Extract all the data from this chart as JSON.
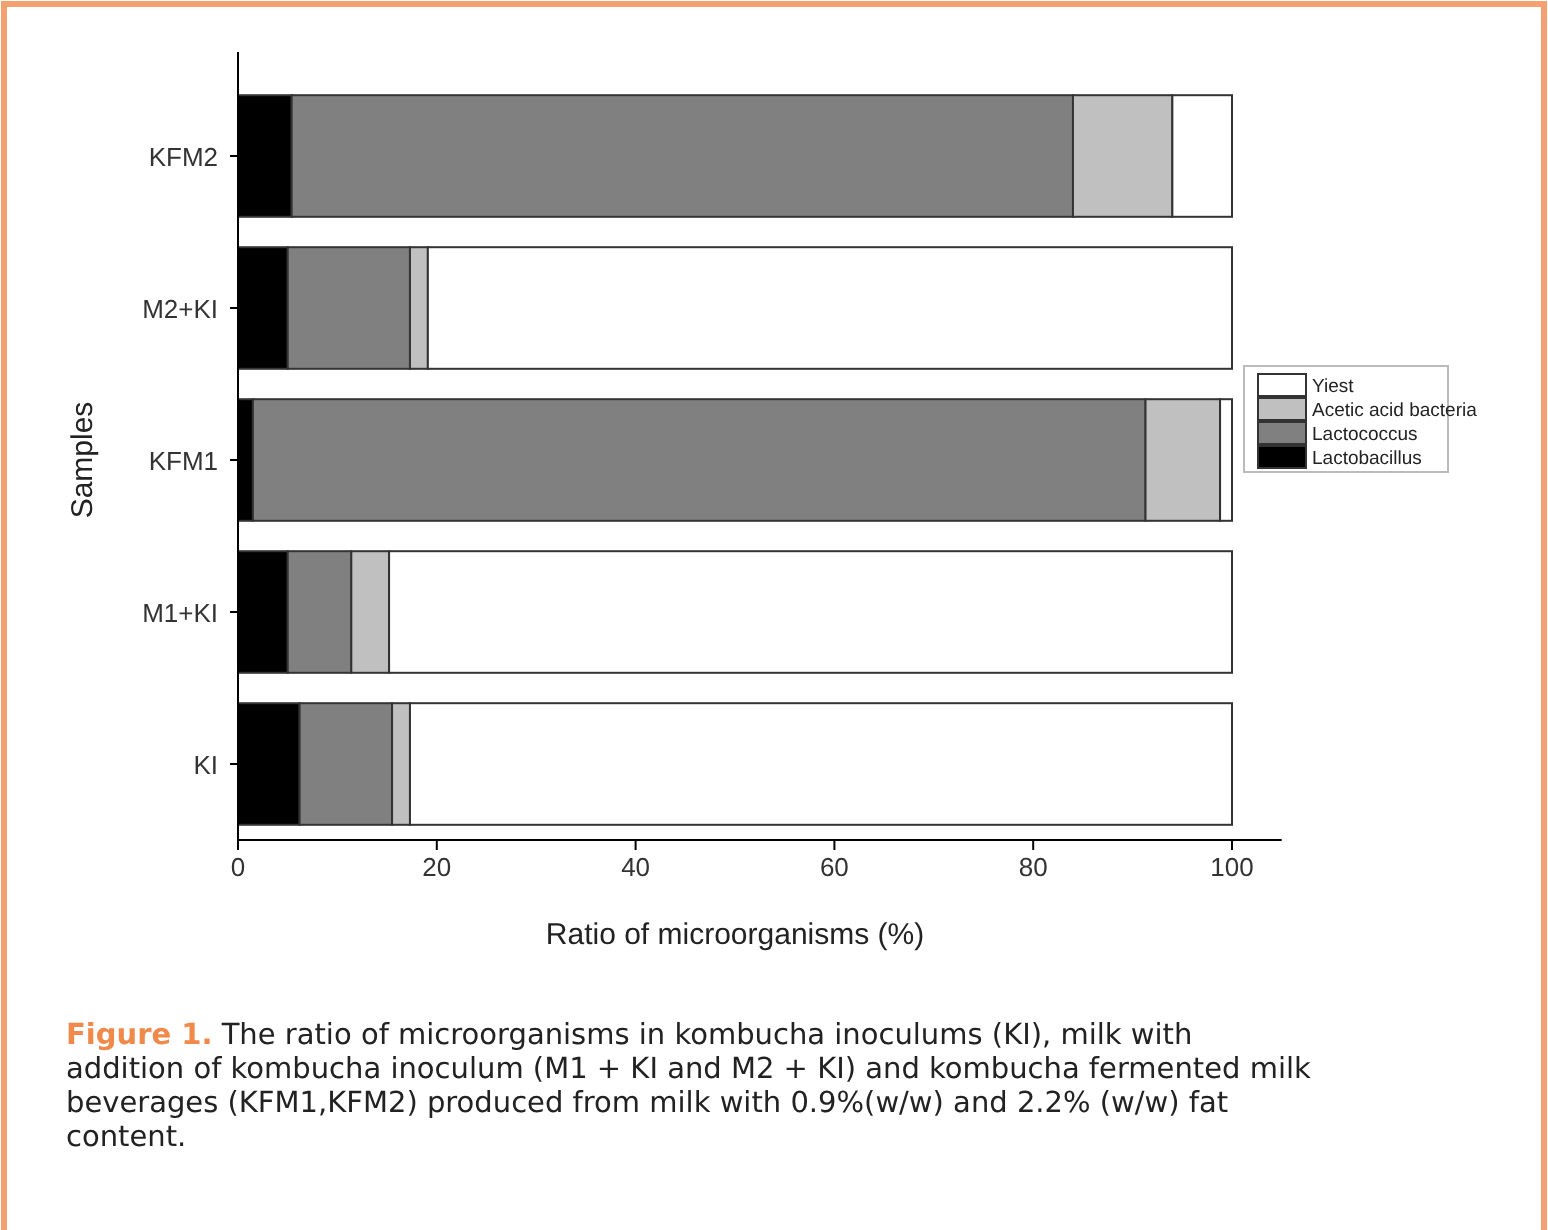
{
  "chart_data": {
    "type": "bar",
    "orientation": "horizontal",
    "stacked": true,
    "xlabel": "Ratio of microorganisms (%)",
    "ylabel": "Samples",
    "categories": [
      "KFM2",
      "M2+KI",
      "KFM1",
      "M1+KI",
      "KI"
    ],
    "series": [
      {
        "name": "Lactobacillus",
        "color": "#000000",
        "values": [
          5.4,
          5,
          1.5,
          5,
          6.2
        ]
      },
      {
        "name": "Lactococcus",
        "color": "#808080",
        "values": [
          78.6,
          12.3,
          89.8,
          6.4,
          9.3
        ]
      },
      {
        "name": "Acetic acid bacteria",
        "color": "#c0c0c0",
        "values": [
          10,
          1.8,
          7.5,
          3.8,
          1.8
        ]
      },
      {
        "name": "Yiest",
        "color": "#ffffff",
        "values": [
          6,
          80.9,
          1.2,
          84.8,
          82.7
        ]
      }
    ],
    "xlim": [
      0,
      105
    ],
    "xticks": [
      0,
      20,
      40,
      60,
      80,
      100
    ],
    "legend": "right",
    "annotations": [
      "Figure 1. The ratio of microorganisms in kombucha inoculums (KI), milk with addition of kombucha inoculum (M1 + KI and M2 + KI) and kombucha fermented milk beverages (KFM1,KFM2) produced from milk with  0.9%(w/w) and 2.2% (w/w) fat content."
    ]
  }
}
